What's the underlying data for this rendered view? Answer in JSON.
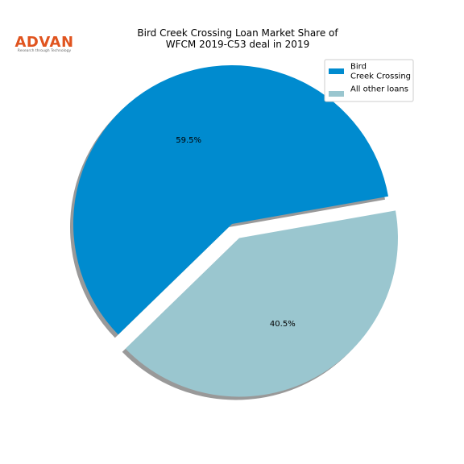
{
  "logo": {
    "name": "ADVAN",
    "tagline": "Research through Technology"
  },
  "chart_data": {
    "type": "pie",
    "title": "Bird Creek Crossing Loan Market Share of\nWFCM 2019-C53 deal in 2019",
    "categories": [
      "Bird\nCreek Crossing",
      "All other loans"
    ],
    "values": [
      59.5,
      40.5
    ],
    "value_labels": [
      "59.5%",
      "40.5%"
    ],
    "colors": [
      "#008bcf",
      "#9ac6cf"
    ],
    "legend": "upper right"
  }
}
